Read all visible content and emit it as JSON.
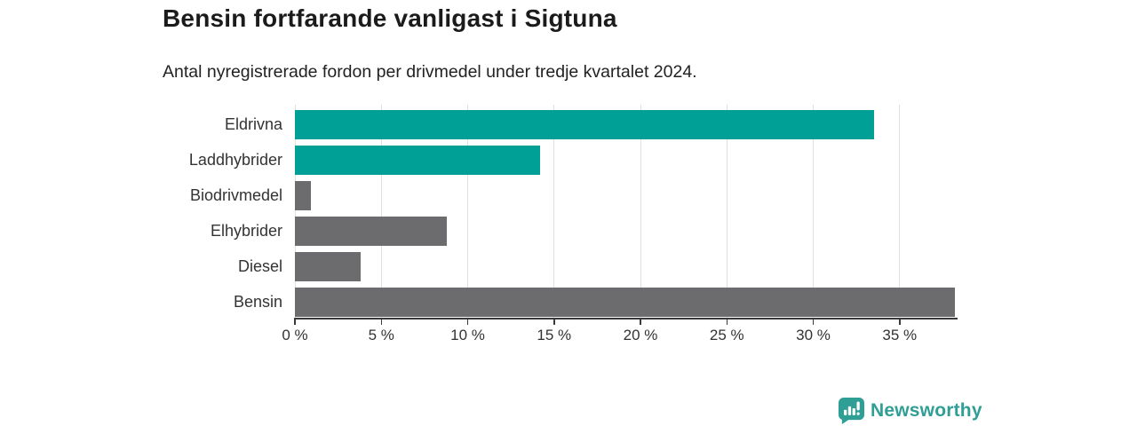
{
  "header": {
    "title": "Bensin fortfarande vanligast i Sigtuna",
    "subtitle": "Antal nyregistrerade fordon per drivmedel under tredje kvartalet 2024."
  },
  "chart_data": {
    "type": "bar",
    "orientation": "horizontal",
    "title": "Bensin fortfarande vanligast i Sigtuna",
    "subtitle": "Antal nyregistrerade fordon per drivmedel under tredje kvartalet 2024.",
    "categories": [
      "Eldrivna",
      "Laddhybrider",
      "Biodrivmedel",
      "Elhybrider",
      "Diesel",
      "Bensin"
    ],
    "values": [
      33.5,
      14.2,
      0.9,
      8.8,
      3.8,
      38.2
    ],
    "unit": "%",
    "bar_colors": [
      "#00a096",
      "#00a096",
      "#6c6c6f",
      "#6c6c6f",
      "#6c6c6f",
      "#6c6c6f"
    ],
    "xlim": [
      0,
      38.3
    ],
    "x_ticks": [
      0,
      5,
      10,
      15,
      20,
      25,
      30,
      35
    ],
    "x_tick_labels": [
      "0 %",
      "5 %",
      "10 %",
      "15 %",
      "20 %",
      "25 %",
      "30 %",
      "35 %"
    ],
    "grid": true,
    "legend": false
  },
  "footer": {
    "brand": "Newsworthy"
  },
  "colors": {
    "teal": "#00a096",
    "gray": "#6c6c6f",
    "logo_teal": "#2f9e94",
    "grid": "#e0e0e0",
    "axis": "#3a3a3a",
    "title_text": "#1b1b1b",
    "body_text": "#333333"
  }
}
